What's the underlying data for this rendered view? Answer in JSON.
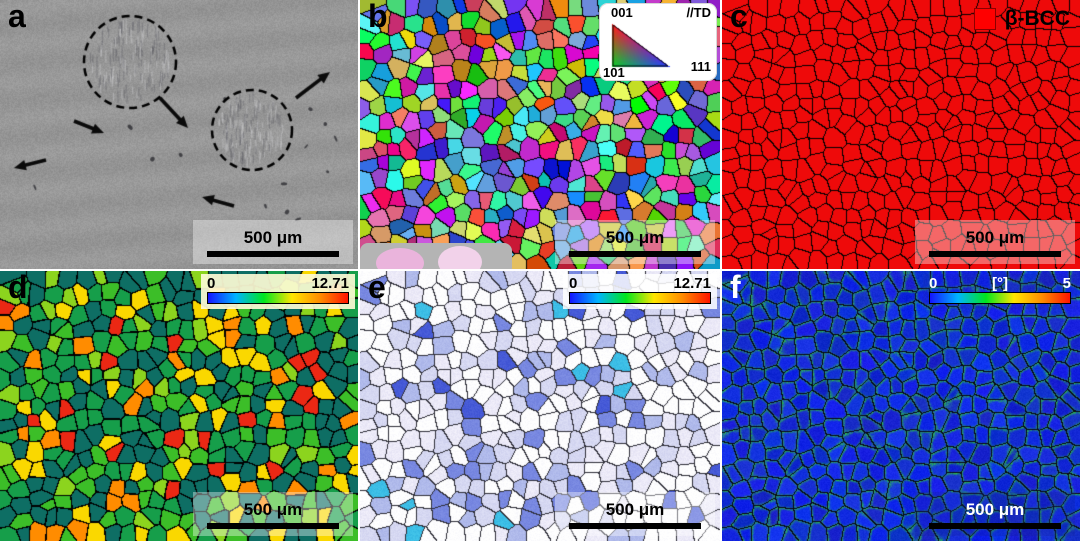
{
  "figure": {
    "panels": [
      {
        "label": "a",
        "scale_bar": "500 μm"
      },
      {
        "label": "b",
        "scale_bar": "500 μm",
        "legend": {
          "c001": "001",
          "c101": "101",
          "c111": "111",
          "direction": "//TD"
        }
      },
      {
        "label": "c",
        "scale_bar": "500 μm",
        "legend": {
          "phase": "β-BCC",
          "color": "#ff0000"
        }
      },
      {
        "label": "d",
        "scale_bar": "500 μm",
        "colorbar": {
          "min": "0",
          "max": "12.71"
        }
      },
      {
        "label": "e",
        "scale_bar": "500 μm",
        "colorbar": {
          "min": "0",
          "max": "12.71"
        }
      },
      {
        "label": "f",
        "scale_bar": "500 μm",
        "colorbar": {
          "min": "0",
          "unit": "[°]",
          "max": "5"
        }
      }
    ],
    "colors": {
      "phase_red": "#ee0a0a",
      "kam_blue": "#0c1ec8",
      "colormap": [
        "#1414ff",
        "#00b4ff",
        "#00e61e",
        "#ffe600",
        "#ff8c00",
        "#ff1400"
      ]
    }
  }
}
